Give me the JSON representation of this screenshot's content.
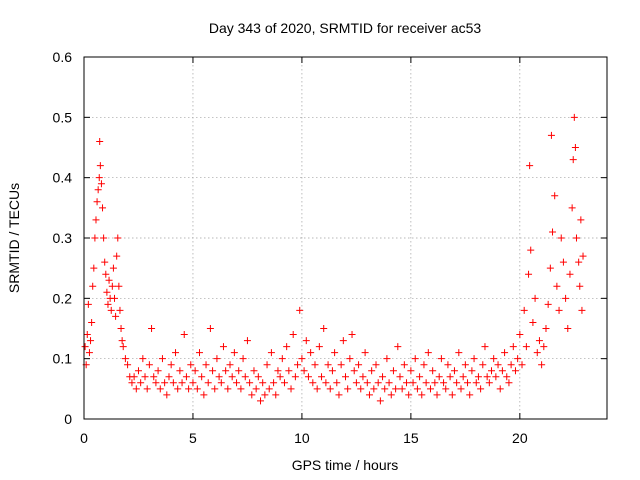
{
  "chart_data": {
    "type": "scatter",
    "title": "Day 343 of 2020, SRMTID for receiver ac53",
    "xlabel": "GPS time / hours",
    "ylabel": "SRMTID / TECUs",
    "xlim": [
      0,
      24
    ],
    "ylim": [
      0,
      0.6
    ],
    "xticks": [
      0,
      5,
      10,
      15,
      20
    ],
    "yticks": [
      0,
      0.1,
      0.2,
      0.3,
      0.4,
      0.5,
      0.6
    ],
    "xtick_labels": [
      "0",
      "5",
      "10",
      "15",
      "20"
    ],
    "ytick_labels": [
      "0",
      "0.1",
      "0.2",
      "0.3",
      "0.4",
      "0.5",
      "0.6"
    ],
    "grid": true,
    "marker": "plus",
    "series": [
      {
        "name": "SRMTID",
        "color": "#ff0000",
        "points": [
          [
            0.05,
            0.12
          ],
          [
            0.1,
            0.09
          ],
          [
            0.15,
            0.14
          ],
          [
            0.2,
            0.19
          ],
          [
            0.25,
            0.11
          ],
          [
            0.3,
            0.13
          ],
          [
            0.35,
            0.16
          ],
          [
            0.4,
            0.22
          ],
          [
            0.45,
            0.25
          ],
          [
            0.5,
            0.3
          ],
          [
            0.55,
            0.33
          ],
          [
            0.6,
            0.36
          ],
          [
            0.65,
            0.38
          ],
          [
            0.7,
            0.4
          ],
          [
            0.72,
            0.46
          ],
          [
            0.75,
            0.42
          ],
          [
            0.8,
            0.39
          ],
          [
            0.85,
            0.35
          ],
          [
            0.9,
            0.3
          ],
          [
            0.95,
            0.26
          ],
          [
            1.0,
            0.24
          ],
          [
            1.05,
            0.21
          ],
          [
            1.1,
            0.19
          ],
          [
            1.15,
            0.23
          ],
          [
            1.2,
            0.2
          ],
          [
            1.25,
            0.18
          ],
          [
            1.3,
            0.22
          ],
          [
            1.35,
            0.25
          ],
          [
            1.4,
            0.2
          ],
          [
            1.45,
            0.17
          ],
          [
            1.5,
            0.27
          ],
          [
            1.55,
            0.3
          ],
          [
            1.6,
            0.22
          ],
          [
            1.65,
            0.18
          ],
          [
            1.7,
            0.15
          ],
          [
            1.75,
            0.13
          ],
          [
            1.8,
            0.12
          ],
          [
            1.9,
            0.1
          ],
          [
            2.0,
            0.09
          ],
          [
            2.1,
            0.07
          ],
          [
            2.2,
            0.06
          ],
          [
            2.3,
            0.07
          ],
          [
            2.4,
            0.05
          ],
          [
            2.5,
            0.08
          ],
          [
            2.6,
            0.06
          ],
          [
            2.7,
            0.1
          ],
          [
            2.8,
            0.07
          ],
          [
            2.9,
            0.05
          ],
          [
            3.0,
            0.09
          ],
          [
            3.1,
            0.15
          ],
          [
            3.2,
            0.07
          ],
          [
            3.3,
            0.06
          ],
          [
            3.4,
            0.08
          ],
          [
            3.5,
            0.05
          ],
          [
            3.6,
            0.1
          ],
          [
            3.7,
            0.06
          ],
          [
            3.8,
            0.04
          ],
          [
            3.9,
            0.07
          ],
          [
            4.0,
            0.09
          ],
          [
            4.1,
            0.06
          ],
          [
            4.2,
            0.11
          ],
          [
            4.3,
            0.05
          ],
          [
            4.4,
            0.08
          ],
          [
            4.5,
            0.06
          ],
          [
            4.6,
            0.14
          ],
          [
            4.7,
            0.07
          ],
          [
            4.8,
            0.05
          ],
          [
            4.9,
            0.09
          ],
          [
            5.0,
            0.06
          ],
          [
            5.1,
            0.08
          ],
          [
            5.2,
            0.05
          ],
          [
            5.3,
            0.11
          ],
          [
            5.4,
            0.07
          ],
          [
            5.5,
            0.04
          ],
          [
            5.6,
            0.09
          ],
          [
            5.7,
            0.06
          ],
          [
            5.8,
            0.15
          ],
          [
            5.9,
            0.08
          ],
          [
            6.0,
            0.05
          ],
          [
            6.1,
            0.1
          ],
          [
            6.2,
            0.07
          ],
          [
            6.3,
            0.06
          ],
          [
            6.4,
            0.12
          ],
          [
            6.5,
            0.08
          ],
          [
            6.6,
            0.05
          ],
          [
            6.7,
            0.09
          ],
          [
            6.8,
            0.07
          ],
          [
            6.9,
            0.11
          ],
          [
            7.0,
            0.06
          ],
          [
            7.1,
            0.08
          ],
          [
            7.2,
            0.05
          ],
          [
            7.3,
            0.1
          ],
          [
            7.4,
            0.07
          ],
          [
            7.5,
            0.13
          ],
          [
            7.6,
            0.06
          ],
          [
            7.7,
            0.04
          ],
          [
            7.8,
            0.08
          ],
          [
            7.9,
            0.05
          ],
          [
            8.0,
            0.07
          ],
          [
            8.1,
            0.03
          ],
          [
            8.2,
            0.06
          ],
          [
            8.3,
            0.04
          ],
          [
            8.4,
            0.09
          ],
          [
            8.5,
            0.05
          ],
          [
            8.6,
            0.11
          ],
          [
            8.7,
            0.06
          ],
          [
            8.8,
            0.04
          ],
          [
            8.9,
            0.08
          ],
          [
            9.0,
            0.07
          ],
          [
            9.1,
            0.1
          ],
          [
            9.2,
            0.06
          ],
          [
            9.3,
            0.12
          ],
          [
            9.4,
            0.08
          ],
          [
            9.5,
            0.05
          ],
          [
            9.6,
            0.14
          ],
          [
            9.7,
            0.07
          ],
          [
            9.8,
            0.09
          ],
          [
            9.9,
            0.18
          ],
          [
            10.0,
            0.1
          ],
          [
            10.1,
            0.08
          ],
          [
            10.2,
            0.13
          ],
          [
            10.3,
            0.07
          ],
          [
            10.4,
            0.11
          ],
          [
            10.5,
            0.06
          ],
          [
            10.6,
            0.09
          ],
          [
            10.7,
            0.05
          ],
          [
            10.8,
            0.12
          ],
          [
            10.9,
            0.07
          ],
          [
            11.0,
            0.15
          ],
          [
            11.1,
            0.06
          ],
          [
            11.2,
            0.09
          ],
          [
            11.3,
            0.05
          ],
          [
            11.4,
            0.08
          ],
          [
            11.5,
            0.11
          ],
          [
            11.6,
            0.06
          ],
          [
            11.7,
            0.04
          ],
          [
            11.8,
            0.09
          ],
          [
            11.9,
            0.13
          ],
          [
            12.0,
            0.07
          ],
          [
            12.1,
            0.05
          ],
          [
            12.2,
            0.1
          ],
          [
            12.3,
            0.14
          ],
          [
            12.4,
            0.08
          ],
          [
            12.5,
            0.06
          ],
          [
            12.6,
            0.09
          ],
          [
            12.7,
            0.05
          ],
          [
            12.8,
            0.07
          ],
          [
            12.9,
            0.11
          ],
          [
            13.0,
            0.06
          ],
          [
            13.1,
            0.04
          ],
          [
            13.2,
            0.08
          ],
          [
            13.3,
            0.05
          ],
          [
            13.4,
            0.09
          ],
          [
            13.5,
            0.06
          ],
          [
            13.6,
            0.03
          ],
          [
            13.7,
            0.07
          ],
          [
            13.8,
            0.05
          ],
          [
            13.9,
            0.1
          ],
          [
            14.0,
            0.06
          ],
          [
            14.1,
            0.04
          ],
          [
            14.2,
            0.08
          ],
          [
            14.3,
            0.05
          ],
          [
            14.4,
            0.12
          ],
          [
            14.5,
            0.07
          ],
          [
            14.6,
            0.05
          ],
          [
            14.7,
            0.09
          ],
          [
            14.8,
            0.06
          ],
          [
            14.9,
            0.04
          ],
          [
            15.0,
            0.08
          ],
          [
            15.1,
            0.06
          ],
          [
            15.2,
            0.1
          ],
          [
            15.3,
            0.05
          ],
          [
            15.4,
            0.07
          ],
          [
            15.5,
            0.04
          ],
          [
            15.6,
            0.09
          ],
          [
            15.7,
            0.06
          ],
          [
            15.8,
            0.11
          ],
          [
            15.9,
            0.05
          ],
          [
            16.0,
            0.08
          ],
          [
            16.1,
            0.06
          ],
          [
            16.2,
            0.04
          ],
          [
            16.3,
            0.07
          ],
          [
            16.4,
            0.1
          ],
          [
            16.5,
            0.06
          ],
          [
            16.6,
            0.05
          ],
          [
            16.7,
            0.09
          ],
          [
            16.8,
            0.07
          ],
          [
            16.9,
            0.04
          ],
          [
            17.0,
            0.08
          ],
          [
            17.1,
            0.06
          ],
          [
            17.2,
            0.11
          ],
          [
            17.3,
            0.05
          ],
          [
            17.4,
            0.07
          ],
          [
            17.5,
            0.09
          ],
          [
            17.6,
            0.06
          ],
          [
            17.7,
            0.04
          ],
          [
            17.8,
            0.08
          ],
          [
            17.9,
            0.1
          ],
          [
            18.0,
            0.06
          ],
          [
            18.1,
            0.07
          ],
          [
            18.2,
            0.05
          ],
          [
            18.3,
            0.09
          ],
          [
            18.4,
            0.12
          ],
          [
            18.5,
            0.07
          ],
          [
            18.6,
            0.06
          ],
          [
            18.7,
            0.08
          ],
          [
            18.8,
            0.1
          ],
          [
            18.9,
            0.07
          ],
          [
            19.0,
            0.09
          ],
          [
            19.1,
            0.05
          ],
          [
            19.2,
            0.08
          ],
          [
            19.3,
            0.11
          ],
          [
            19.4,
            0.07
          ],
          [
            19.5,
            0.06
          ],
          [
            19.6,
            0.09
          ],
          [
            19.7,
            0.12
          ],
          [
            19.8,
            0.08
          ],
          [
            19.9,
            0.1
          ],
          [
            20.0,
            0.14
          ],
          [
            20.1,
            0.09
          ],
          [
            20.2,
            0.18
          ],
          [
            20.3,
            0.12
          ],
          [
            20.4,
            0.24
          ],
          [
            20.45,
            0.42
          ],
          [
            20.5,
            0.28
          ],
          [
            20.6,
            0.16
          ],
          [
            20.7,
            0.2
          ],
          [
            20.8,
            0.11
          ],
          [
            20.9,
            0.13
          ],
          [
            21.0,
            0.09
          ],
          [
            21.1,
            0.12
          ],
          [
            21.2,
            0.15
          ],
          [
            21.3,
            0.19
          ],
          [
            21.4,
            0.25
          ],
          [
            21.45,
            0.47
          ],
          [
            21.5,
            0.31
          ],
          [
            21.6,
            0.37
          ],
          [
            21.7,
            0.22
          ],
          [
            21.8,
            0.18
          ],
          [
            21.9,
            0.3
          ],
          [
            22.0,
            0.26
          ],
          [
            22.1,
            0.2
          ],
          [
            22.2,
            0.15
          ],
          [
            22.3,
            0.24
          ],
          [
            22.4,
            0.35
          ],
          [
            22.45,
            0.43
          ],
          [
            22.5,
            0.5
          ],
          [
            22.55,
            0.45
          ],
          [
            22.6,
            0.3
          ],
          [
            22.7,
            0.26
          ],
          [
            22.75,
            0.22
          ],
          [
            22.8,
            0.33
          ],
          [
            22.85,
            0.18
          ],
          [
            22.9,
            0.27
          ]
        ]
      }
    ]
  }
}
